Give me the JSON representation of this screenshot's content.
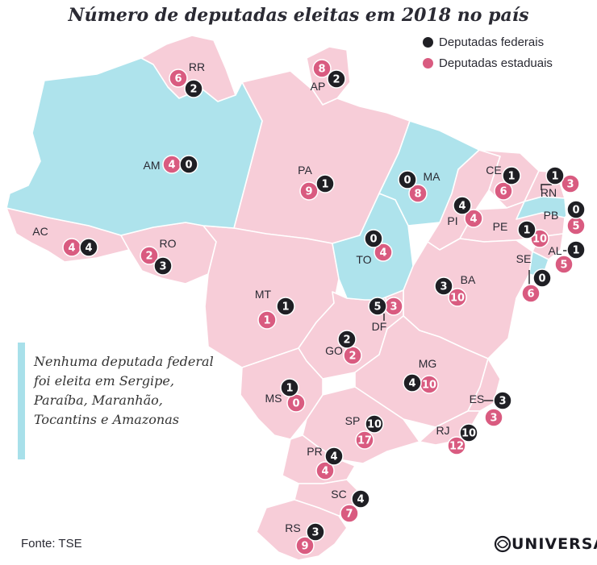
{
  "title": "Número de deputadas eleitas em 2018 no país",
  "legend": [
    {
      "label": "Deputadas federais",
      "color": "#1f1f24"
    },
    {
      "label": "Deputadas estaduais",
      "color": "#d95b80"
    }
  ],
  "note": "Nenhuma deputada federal foi eleita em Sergipe, Paraíba, Maranhão, Tocantins e Amazonas",
  "source": "Fonte: TSE",
  "logo": "UNIVERSA",
  "colors": {
    "map_default": "#f7cdd8",
    "map_highlight": "#aee3ec",
    "federal": "#1f1f24",
    "estadual": "#d95b80"
  },
  "states": [
    {
      "uf": "RR",
      "federal": 2,
      "estadual": 6
    },
    {
      "uf": "AP",
      "federal": 2,
      "estadual": 8
    },
    {
      "uf": "AM",
      "federal": 0,
      "estadual": 4
    },
    {
      "uf": "PA",
      "federal": 1,
      "estadual": 9
    },
    {
      "uf": "MA",
      "federal": 0,
      "estadual": 8
    },
    {
      "uf": "CE",
      "federal": 1,
      "estadual": 6
    },
    {
      "uf": "RN",
      "federal": 1,
      "estadual": 3
    },
    {
      "uf": "PB",
      "federal": 0,
      "estadual": 5
    },
    {
      "uf": "PI",
      "federal": 4,
      "estadual": 4
    },
    {
      "uf": "PE",
      "federal": 1,
      "estadual": 10
    },
    {
      "uf": "AL",
      "federal": 1,
      "estadual": 5
    },
    {
      "uf": "SE",
      "federal": 0,
      "estadual": 6
    },
    {
      "uf": "AC",
      "federal": 4,
      "estadual": 4
    },
    {
      "uf": "RO",
      "federal": 3,
      "estadual": 2
    },
    {
      "uf": "TO",
      "federal": 0,
      "estadual": 4
    },
    {
      "uf": "BA",
      "federal": 3,
      "estadual": 10
    },
    {
      "uf": "MT",
      "federal": 1,
      "estadual": 1
    },
    {
      "uf": "DF",
      "federal": 5,
      "estadual": 3
    },
    {
      "uf": "GO",
      "federal": 2,
      "estadual": 2
    },
    {
      "uf": "MG",
      "federal": 4,
      "estadual": 10
    },
    {
      "uf": "MS",
      "federal": 1,
      "estadual": 0
    },
    {
      "uf": "ES",
      "federal": 3,
      "estadual": 3
    },
    {
      "uf": "SP",
      "federal": 10,
      "estadual": 17
    },
    {
      "uf": "RJ",
      "federal": 10,
      "estadual": 12
    },
    {
      "uf": "PR",
      "federal": 4,
      "estadual": 4
    },
    {
      "uf": "SC",
      "federal": 4,
      "estadual": 7
    },
    {
      "uf": "RS",
      "federal": 3,
      "estadual": 9
    }
  ]
}
